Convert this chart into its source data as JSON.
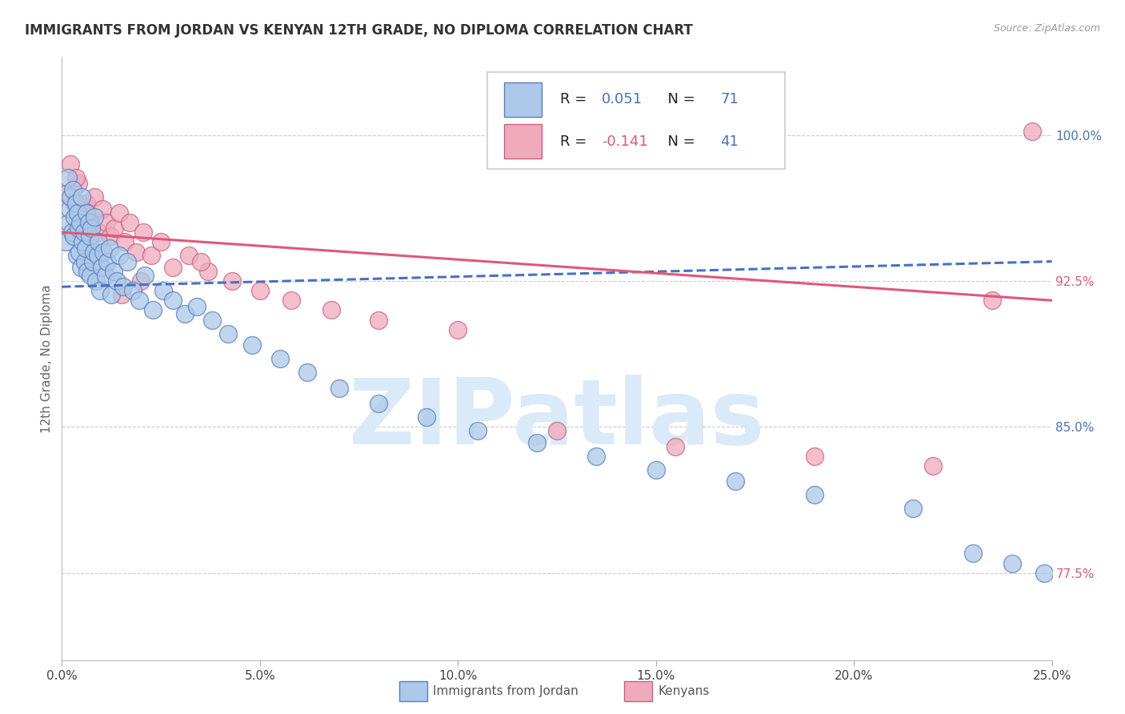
{
  "title": "IMMIGRANTS FROM JORDAN VS KENYAN 12TH GRADE, NO DIPLOMA CORRELATION CHART",
  "source": "Source: ZipAtlas.com",
  "ylabel": "12th Grade, No Diploma",
  "xlabel_ticks": [
    "0.0%",
    "5.0%",
    "10.0%",
    "15.0%",
    "20.0%",
    "25.0%"
  ],
  "xlabel_vals": [
    0.0,
    5.0,
    10.0,
    15.0,
    20.0,
    25.0
  ],
  "ylabel_ticks": [
    "77.5%",
    "85.0%",
    "92.5%",
    "100.0%"
  ],
  "ylabel_vals": [
    77.5,
    85.0,
    92.5,
    100.0
  ],
  "xlim": [
    0.0,
    25.0
  ],
  "ylim": [
    73.0,
    104.0
  ],
  "jordan_R": 0.051,
  "jordan_N": 71,
  "kenyan_R": -0.141,
  "kenyan_N": 41,
  "jordan_face": "#adc8e8",
  "kenyan_face": "#f0aabb",
  "jordan_edge": "#5580c0",
  "kenyan_edge": "#cc6080",
  "trend_jordan": "#4472c4",
  "trend_kenyan": "#e05878",
  "watermark": "ZIPatlas",
  "watermark_color": "#daeaf8",
  "jordan_x": [
    0.1,
    0.15,
    0.18,
    0.2,
    0.22,
    0.25,
    0.28,
    0.3,
    0.32,
    0.35,
    0.37,
    0.4,
    0.42,
    0.44,
    0.46,
    0.48,
    0.5,
    0.52,
    0.55,
    0.57,
    0.6,
    0.62,
    0.65,
    0.68,
    0.7,
    0.72,
    0.75,
    0.78,
    0.8,
    0.83,
    0.86,
    0.9,
    0.93,
    0.96,
    1.0,
    1.05,
    1.1,
    1.15,
    1.2,
    1.25,
    1.3,
    1.38,
    1.45,
    1.55,
    1.65,
    1.8,
    1.95,
    2.1,
    2.3,
    2.55,
    2.8,
    3.1,
    3.4,
    3.8,
    4.2,
    4.8,
    5.5,
    6.2,
    7.0,
    8.0,
    9.2,
    10.5,
    12.0,
    13.5,
    15.0,
    17.0,
    19.0,
    21.5,
    23.0,
    24.0,
    24.8
  ],
  "jordan_y": [
    94.5,
    97.8,
    95.5,
    96.2,
    96.8,
    95.0,
    97.2,
    94.8,
    95.8,
    96.5,
    93.8,
    96.0,
    95.2,
    94.0,
    95.5,
    93.2,
    96.8,
    94.5,
    95.0,
    93.5,
    94.2,
    96.0,
    93.0,
    95.5,
    94.8,
    92.8,
    95.2,
    93.5,
    94.0,
    95.8,
    92.5,
    93.8,
    94.5,
    92.0,
    93.2,
    94.0,
    92.8,
    93.5,
    94.2,
    91.8,
    93.0,
    92.5,
    93.8,
    92.2,
    93.5,
    92.0,
    91.5,
    92.8,
    91.0,
    92.0,
    91.5,
    90.8,
    91.2,
    90.5,
    89.8,
    89.2,
    88.5,
    87.8,
    87.0,
    86.2,
    85.5,
    84.8,
    84.2,
    83.5,
    82.8,
    82.2,
    81.5,
    80.8,
    78.5,
    78.0,
    77.5
  ],
  "kenyan_x": [
    0.12,
    0.22,
    0.32,
    0.42,
    0.52,
    0.62,
    0.72,
    0.82,
    0.92,
    1.02,
    1.12,
    1.22,
    1.32,
    1.45,
    1.58,
    1.72,
    1.88,
    2.05,
    2.25,
    2.5,
    2.8,
    3.2,
    3.7,
    4.3,
    5.0,
    5.8,
    6.8,
    8.0,
    10.0,
    12.5,
    15.5,
    19.0,
    22.0,
    23.5,
    24.5,
    0.35,
    0.55,
    0.75,
    1.5,
    2.0,
    3.5
  ],
  "kenyan_y": [
    97.0,
    98.5,
    96.5,
    97.5,
    95.8,
    96.5,
    95.5,
    96.8,
    95.0,
    96.2,
    95.5,
    94.8,
    95.2,
    96.0,
    94.5,
    95.5,
    94.0,
    95.0,
    93.8,
    94.5,
    93.2,
    93.8,
    93.0,
    92.5,
    92.0,
    91.5,
    91.0,
    90.5,
    90.0,
    84.8,
    84.0,
    83.5,
    83.0,
    91.5,
    100.2,
    97.8,
    96.0,
    94.2,
    91.8,
    92.5,
    93.5
  ],
  "jordan_trend_x0": 0.0,
  "jordan_trend_x1": 25.0,
  "jordan_trend_y0": 92.2,
  "jordan_trend_y1": 93.5,
  "kenyan_trend_x0": 0.0,
  "kenyan_trend_x1": 25.0,
  "kenyan_trend_y0": 95.0,
  "kenyan_trend_y1": 91.5
}
